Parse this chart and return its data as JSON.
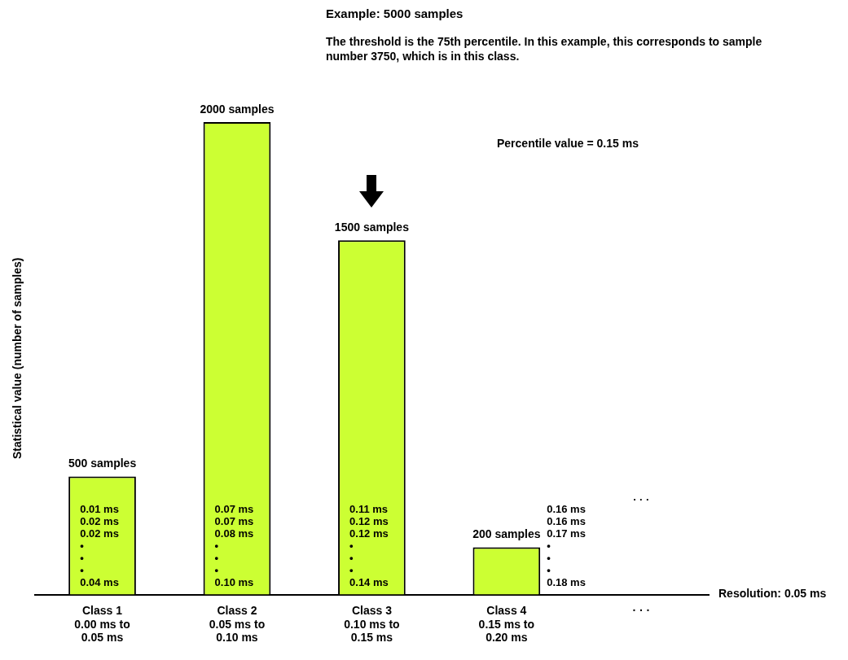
{
  "chart_data": {
    "type": "bar",
    "title": "Example: 5000 samples",
    "subtitle": "The threshold is the 75th percentile. In this example, this corresponds to sample number 3750, which is in this class.",
    "ylabel": "Statistical value (number of samples)",
    "xlabel": "Resolution: 0.05 ms",
    "categories": [
      "Class 1\n0.00 ms to\n0.05 ms",
      "Class 2\n0.05 ms to\n0.10 ms",
      "Class 3\n0.10 ms to\n0.15 ms",
      "Class 4\n0.15 ms to\n0.20 ms",
      "· · ·"
    ],
    "values": [
      500,
      2000,
      1500,
      200,
      null
    ],
    "color": "#ccff33",
    "value_labels": [
      "500 samples",
      "2000 samples",
      "1500 samples",
      "200 samples",
      null
    ],
    "annotations": [
      "0.01 ms\n0.02 ms\n0.02 ms\n•\n•\n•\n0.04 ms",
      "0.07 ms\n0.07 ms\n0.08 ms\n•\n•\n•\n0.10 ms",
      "0.11 ms\n0.12 ms\n0.12 ms\n•\n•\n•\n0.14 ms",
      "0.16 ms\n0.16 ms\n0.17 ms\n•\n•\n•\n0.18 ms",
      "· · ·",
      "Percentile value = 0.15 ms"
    ],
    "grid": false,
    "legend": false
  }
}
